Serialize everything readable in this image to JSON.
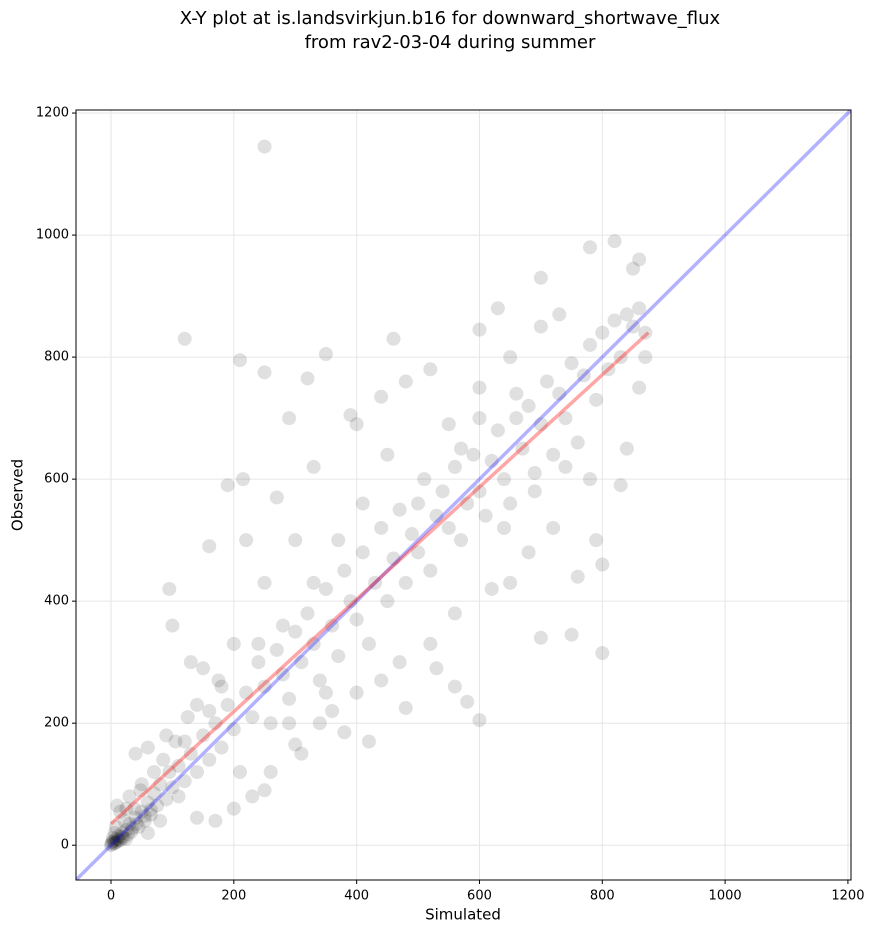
{
  "chart_data": {
    "type": "scatter",
    "title": [
      "X-Y plot at is.landsvirkjun.b16 for downward_shortwave_flux",
      "from rav2-03-04 during summer"
    ],
    "x_label": "Simulated",
    "y_label": "Observed",
    "xlim": [
      -57,
      1205
    ],
    "ylim": [
      -57,
      1205
    ],
    "xticks": [
      0,
      200,
      400,
      600,
      800,
      1000,
      1200
    ],
    "yticks": [
      0,
      200,
      400,
      600,
      800,
      1000,
      1200
    ],
    "grid": true,
    "series": [
      {
        "type": "scatter",
        "color": "#000000",
        "opacity": 0.12,
        "x": [
          0,
          2,
          5,
          8,
          10,
          12,
          15,
          18,
          20,
          3,
          6,
          25,
          28,
          30,
          35,
          40,
          22,
          15,
          10,
          45,
          50,
          55,
          60,
          38,
          65,
          70,
          48,
          30,
          75,
          80,
          90,
          95,
          100,
          85,
          110,
          120,
          130,
          105,
          140,
          150,
          160,
          170,
          125,
          180,
          190,
          200,
          210,
          175,
          220,
          230,
          240,
          250,
          260,
          200,
          270,
          280,
          290,
          300,
          150,
          310,
          320,
          330,
          340,
          350,
          360,
          250,
          370,
          380,
          390,
          400,
          410,
          420,
          430,
          300,
          440,
          450,
          460,
          470,
          480,
          490,
          500,
          510,
          520,
          530,
          540,
          550,
          560,
          570,
          580,
          590,
          600,
          610,
          620,
          630,
          640,
          650,
          660,
          670,
          680,
          690,
          700,
          710,
          720,
          730,
          740,
          750,
          760,
          770,
          780,
          790,
          800,
          810,
          820,
          830,
          840,
          850,
          860,
          870,
          820,
          780,
          700,
          860,
          850,
          630,
          600,
          250,
          120,
          210,
          350,
          460,
          250,
          320,
          390,
          440,
          800,
          750,
          700,
          600,
          580,
          480,
          560,
          530,
          420,
          380,
          300,
          250,
          260,
          230,
          200,
          170,
          140,
          110,
          80,
          60,
          140,
          90,
          60,
          40,
          130,
          100,
          95,
          160,
          190,
          215,
          270,
          220,
          330,
          290,
          400,
          450,
          480,
          520,
          550,
          600,
          650,
          700,
          730,
          790,
          800,
          760,
          720,
          680,
          650,
          620,
          560,
          520,
          470,
          440,
          400,
          360,
          340,
          310,
          290,
          350,
          570,
          640,
          690,
          740,
          780,
          840,
          830,
          860,
          870,
          660,
          600,
          500,
          410,
          370,
          330,
          280,
          240,
          180,
          160,
          120,
          70,
          50,
          25,
          8,
          1,
          4,
          7,
          12,
          18,
          24,
          33,
          42,
          55,
          65
        ],
        "values": [
          0,
          5,
          3,
          10,
          6,
          15,
          8,
          20,
          12,
          12,
          20,
          25,
          18,
          35,
          28,
          45,
          40,
          55,
          65,
          30,
          55,
          40,
          70,
          60,
          50,
          85,
          90,
          80,
          65,
          100,
          75,
          120,
          95,
          140,
          130,
          105,
          150,
          170,
          120,
          180,
          140,
          200,
          210,
          160,
          230,
          190,
          120,
          270,
          250,
          210,
          300,
          260,
          200,
          330,
          320,
          280,
          240,
          350,
          290,
          300,
          380,
          330,
          270,
          420,
          360,
          430,
          310,
          450,
          400,
          370,
          480,
          330,
          430,
          500,
          520,
          400,
          470,
          550,
          430,
          510,
          480,
          600,
          450,
          540,
          580,
          520,
          620,
          500,
          560,
          640,
          580,
          540,
          630,
          680,
          600,
          560,
          700,
          650,
          720,
          610,
          690,
          760,
          640,
          740,
          700,
          790,
          660,
          770,
          820,
          730,
          840,
          780,
          860,
          800,
          870,
          850,
          880,
          840,
          990,
          980,
          930,
          960,
          945,
          880,
          845,
          1145,
          830,
          795,
          805,
          830,
          775,
          765,
          705,
          735,
          315,
          345,
          340,
          205,
          235,
          225,
          260,
          290,
          170,
          185,
          165,
          90,
          120,
          80,
          60,
          40,
          45,
          80,
          40,
          20,
          230,
          180,
          160,
          150,
          300,
          360,
          420,
          490,
          590,
          600,
          570,
          500,
          620,
          700,
          690,
          640,
          760,
          780,
          690,
          750,
          800,
          850,
          870,
          500,
          460,
          440,
          520,
          480,
          430,
          420,
          380,
          330,
          300,
          270,
          250,
          220,
          200,
          150,
          200,
          250,
          650,
          520,
          580,
          620,
          600,
          650,
          590,
          750,
          800,
          740,
          700,
          560,
          560,
          500,
          430,
          360,
          330,
          260,
          220,
          170,
          120,
          100,
          60,
          30,
          2,
          7,
          4,
          9,
          14,
          10,
          22,
          35,
          48,
          58
        ]
      },
      {
        "type": "line",
        "color": "#0000ff",
        "opacity": 0.3,
        "x": [
          -57,
          1205
        ],
        "values": [
          -57,
          1205
        ]
      },
      {
        "type": "line",
        "color": "#ff0000",
        "opacity": 0.35,
        "x": [
          0,
          875
        ],
        "values": [
          35,
          840
        ]
      }
    ]
  }
}
